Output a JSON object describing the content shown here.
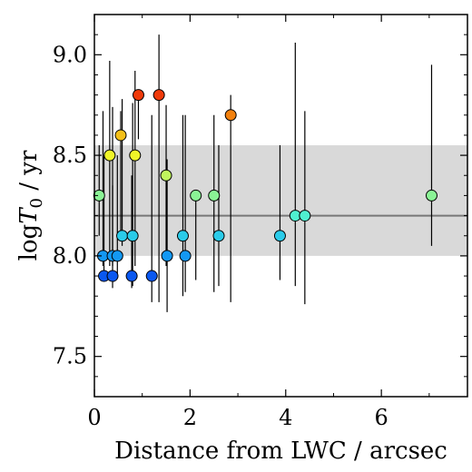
{
  "chart_data": {
    "type": "scatter",
    "xlabel": "Distance from LWC / arcsec",
    "ylabel_main": "log",
    "ylabel_var": "T",
    "ylabel_sub": "0",
    "ylabel_unit": " / yr",
    "xlim": [
      0,
      7.8
    ],
    "ylim": [
      7.3,
      9.2
    ],
    "x_ticks": [
      0,
      2,
      4,
      6
    ],
    "x_tick_labels": [
      "0",
      "2",
      "4",
      "6"
    ],
    "x_minor_ticks": [
      1,
      3,
      5,
      7
    ],
    "y_ticks": [
      7.5,
      8.0,
      8.5,
      9.0
    ],
    "y_tick_labels": [
      "7.5",
      "8.0",
      "8.5",
      "9.0"
    ],
    "y_minor_ticks": [
      7.4,
      7.6,
      7.7,
      7.8,
      7.9,
      8.1,
      8.2,
      8.3,
      8.4,
      8.6,
      8.7,
      8.8,
      8.9,
      9.1
    ],
    "band": {
      "y_low": 8.0,
      "y_high": 8.55,
      "mean": 8.2,
      "fill": "#d9d9d9",
      "line_color": "#777777"
    },
    "colormap": [
      "#0a58f0",
      "#18b8f5",
      "#4ff0d0",
      "#a8f577",
      "#f0f528",
      "#f5a410",
      "#f03a0a"
    ],
    "color_range": [
      7.9,
      8.8
    ],
    "points": [
      {
        "x": 0.1,
        "y": 8.3,
        "y_low": 8.1,
        "y_high": 8.55
      },
      {
        "x": 0.18,
        "y": 8.0,
        "y_low": 7.95,
        "y_high": 8.72
      },
      {
        "x": 0.2,
        "y": 7.9,
        "y_low": 7.9,
        "y_high": 8.5
      },
      {
        "x": 0.32,
        "y": 8.5,
        "y_low": 7.95,
        "y_high": 8.97
      },
      {
        "x": 0.38,
        "y": 7.9,
        "y_low": 7.84,
        "y_high": 8.35
      },
      {
        "x": 0.38,
        "y": 8.0,
        "y_low": 7.95,
        "y_high": 8.74
      },
      {
        "x": 0.48,
        "y": 8.0,
        "y_low": 7.9,
        "y_high": 8.5
      },
      {
        "x": 0.55,
        "y": 8.6,
        "y_low": 8.1,
        "y_high": 8.72
      },
      {
        "x": 0.58,
        "y": 8.1,
        "y_low": 8.05,
        "y_high": 8.78
      },
      {
        "x": 0.78,
        "y": 7.9,
        "y_low": 7.84,
        "y_high": 8.4
      },
      {
        "x": 0.8,
        "y": 8.1,
        "y_low": 7.85,
        "y_high": 8.76
      },
      {
        "x": 0.85,
        "y": 8.5,
        "y_low": 7.95,
        "y_high": 8.92
      },
      {
        "x": 0.92,
        "y": 8.8,
        "y_low": 8.58,
        "y_high": 8.82
      },
      {
        "x": 1.2,
        "y": 7.9,
        "y_low": 7.77,
        "y_high": 8.7
      },
      {
        "x": 1.35,
        "y": 8.8,
        "y_low": 7.77,
        "y_high": 9.1
      },
      {
        "x": 1.5,
        "y": 8.4,
        "y_low": 7.95,
        "y_high": 8.75
      },
      {
        "x": 1.52,
        "y": 8.0,
        "y_low": 7.72,
        "y_high": 8.48
      },
      {
        "x": 1.85,
        "y": 8.1,
        "y_low": 7.8,
        "y_high": 8.7
      },
      {
        "x": 1.9,
        "y": 8.0,
        "y_low": 7.82,
        "y_high": 8.7
      },
      {
        "x": 2.12,
        "y": 8.3,
        "y_low": 7.88,
        "y_high": 8.32
      },
      {
        "x": 2.5,
        "y": 8.3,
        "y_low": 7.82,
        "y_high": 8.7
      },
      {
        "x": 2.6,
        "y": 8.1,
        "y_low": 7.85,
        "y_high": 8.55
      },
      {
        "x": 2.85,
        "y": 8.7,
        "y_low": 7.77,
        "y_high": 8.8
      },
      {
        "x": 3.88,
        "y": 8.1,
        "y_low": 7.88,
        "y_high": 8.55
      },
      {
        "x": 4.2,
        "y": 8.2,
        "y_low": 7.85,
        "y_high": 9.06
      },
      {
        "x": 4.4,
        "y": 8.2,
        "y_low": 7.76,
        "y_high": 8.72
      },
      {
        "x": 7.05,
        "y": 8.3,
        "y_low": 8.05,
        "y_high": 8.95
      }
    ]
  }
}
